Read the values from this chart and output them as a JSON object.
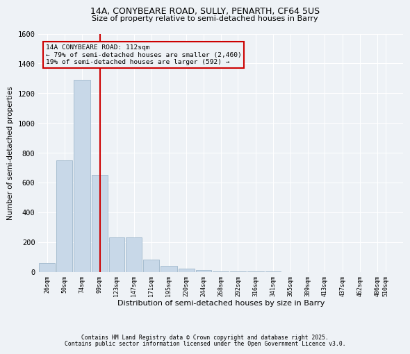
{
  "title1": "14A, CONYBEARE ROAD, SULLY, PENARTH, CF64 5US",
  "title2": "Size of property relative to semi-detached houses in Barry",
  "xlabel": "Distribution of semi-detached houses by size in Barry",
  "ylabel": "Number of semi-detached properties",
  "bar_values": [
    60,
    750,
    1290,
    650,
    230,
    230,
    80,
    40,
    20,
    10,
    5,
    2,
    1,
    1,
    0,
    0,
    0,
    0,
    0,
    0
  ],
  "bin_labels": [
    "26sqm",
    "50sqm",
    "74sqm",
    "99sqm",
    "123sqm",
    "147sqm",
    "171sqm",
    "195sqm",
    "220sqm",
    "244sqm",
    "268sqm",
    "292sqm",
    "316sqm",
    "341sqm",
    "365sqm",
    "389sqm",
    "413sqm",
    "437sqm",
    "462sqm",
    "486sqm",
    "510sqm"
  ],
  "bin_edges": [
    26,
    50,
    74,
    99,
    123,
    147,
    171,
    195,
    220,
    244,
    268,
    292,
    316,
    341,
    365,
    389,
    413,
    437,
    462,
    486,
    510
  ],
  "bar_color": "#c8d8e8",
  "bar_edgecolor": "#a0b8cc",
  "vline_x": 112,
  "vline_color": "#cc0000",
  "annotation_title": "14A CONYBEARE ROAD: 112sqm",
  "annotation_line1": "← 79% of semi-detached houses are smaller (2,460)",
  "annotation_line2": "19% of semi-detached houses are larger (592) →",
  "annotation_box_color": "#cc0000",
  "ylim": [
    0,
    1600
  ],
  "yticks": [
    0,
    200,
    400,
    600,
    800,
    1000,
    1200,
    1400,
    1600
  ],
  "footnote1": "Contains HM Land Registry data © Crown copyright and database right 2025.",
  "footnote2": "Contains public sector information licensed under the Open Government Licence v3.0.",
  "bg_color": "#eef2f6",
  "grid_color": "#ffffff"
}
